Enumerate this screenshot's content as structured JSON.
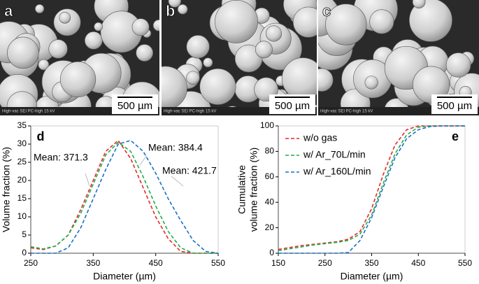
{
  "panels": [
    {
      "label": "a",
      "scale_bar": "500 µm",
      "footer": "High-vac   SEI   PC-high   15 kV"
    },
    {
      "label": "b",
      "scale_bar": "500 µm",
      "footer": "High-vac   SEI   PC-high   15 kV"
    },
    {
      "label": "c",
      "scale_bar": "500 µm",
      "footer": "High-vac   SEI   PC-high   15 kV"
    }
  ],
  "chart_data": [
    {
      "type": "line",
      "panel_label": "d",
      "xlabel": "Diameter (µm)",
      "ylabel": [
        "Volume fraction (%)"
      ],
      "x": [
        250,
        270,
        290,
        310,
        330,
        350,
        370,
        390,
        410,
        430,
        450,
        470,
        490,
        510,
        530,
        550
      ],
      "series": [
        {
          "name": "w/o gas",
          "color": "#e8262a",
          "values": [
            1.5,
            1.0,
            2.0,
            5,
            12,
            20,
            28,
            31,
            26,
            18,
            10,
            4,
            0.5,
            0,
            0,
            0
          ]
        },
        {
          "name": "w/ Ar_70L/min",
          "color": "#1fae4b",
          "values": [
            1.8,
            1.2,
            2.0,
            5,
            11,
            19,
            27,
            30.5,
            28,
            21,
            13,
            6,
            1.5,
            0,
            0,
            0
          ]
        },
        {
          "name": "w/ Ar_160L/min",
          "color": "#1a6fc4",
          "values": [
            0,
            0,
            0,
            1.5,
            7,
            15,
            23,
            30,
            31,
            28,
            22,
            15,
            9,
            3.5,
            0.5,
            0
          ]
        }
      ],
      "annotations": [
        "Mean: 371.3",
        "Mean: 384.4",
        "Mean: 421.7"
      ],
      "xlim": [
        250,
        550
      ],
      "xticks": [
        250,
        350,
        450,
        550
      ],
      "ylim": [
        0,
        35
      ],
      "yticks": [
        0,
        5,
        10,
        15,
        20,
        25,
        30,
        35
      ],
      "legend": false
    },
    {
      "type": "line",
      "panel_label": "e",
      "xlabel": "Diameter (µm)",
      "ylabel": [
        "Cumulative",
        "volume fraction (%)"
      ],
      "x": [
        150,
        175,
        200,
        225,
        250,
        275,
        300,
        325,
        350,
        375,
        400,
        425,
        450,
        475,
        500,
        525,
        550
      ],
      "series": [
        {
          "name": "w/o gas",
          "color": "#e8262a",
          "values": [
            3,
            4.5,
            6,
            7,
            8,
            9,
            11,
            17,
            35,
            62,
            85,
            97,
            100,
            100,
            100,
            100,
            100
          ]
        },
        {
          "name": "w/ Ar_70L/min",
          "color": "#1fae4b",
          "values": [
            2,
            3.5,
            5,
            6.5,
            7.5,
            8.5,
            10,
            15,
            30,
            55,
            78,
            93,
            99,
            100,
            100,
            100,
            100
          ]
        },
        {
          "name": "w/ Ar_160L/min",
          "color": "#1a6fc4",
          "values": [
            0,
            0,
            0,
            0,
            0,
            0,
            0.5,
            10,
            28,
            52,
            75,
            90,
            97,
            99.5,
            100,
            100,
            100
          ]
        }
      ],
      "xlim": [
        150,
        550
      ],
      "xticks": [
        150,
        250,
        350,
        450,
        550
      ],
      "ylim": [
        0,
        100
      ],
      "yticks": [
        0,
        20,
        40,
        60,
        80,
        100
      ],
      "legend": "upper left"
    }
  ]
}
